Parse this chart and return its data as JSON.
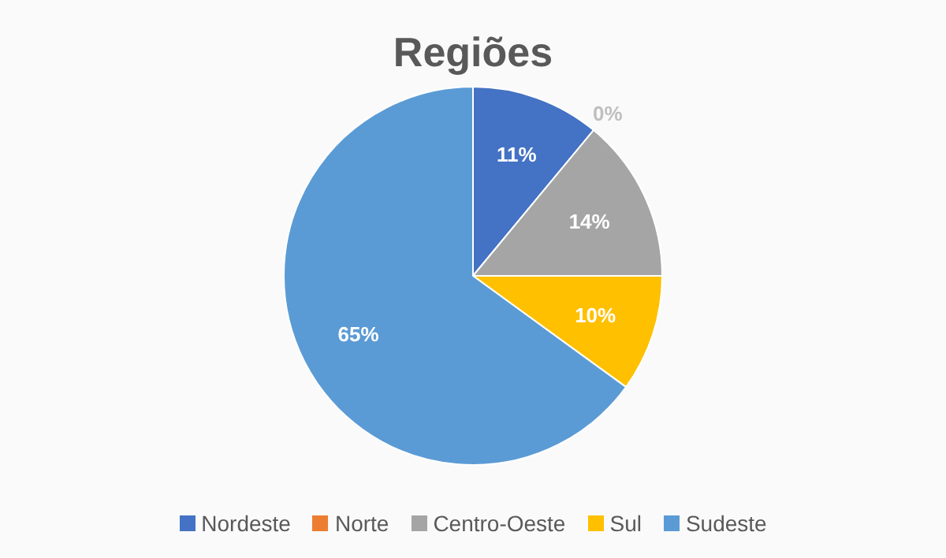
{
  "chart_data": {
    "type": "pie",
    "title": "Regiões",
    "categories": [
      "Nordeste",
      "Norte",
      "Centro-Oeste",
      "Sul",
      "Sudeste"
    ],
    "values": [
      11,
      0,
      14,
      10,
      65
    ],
    "colors": [
      "#4472c4",
      "#ed7d31",
      "#a5a5a5",
      "#ffc000",
      "#5b9bd5"
    ],
    "value_labels": [
      "11%",
      "0%",
      "14%",
      "10%",
      "65%"
    ],
    "legend": "bottom"
  }
}
